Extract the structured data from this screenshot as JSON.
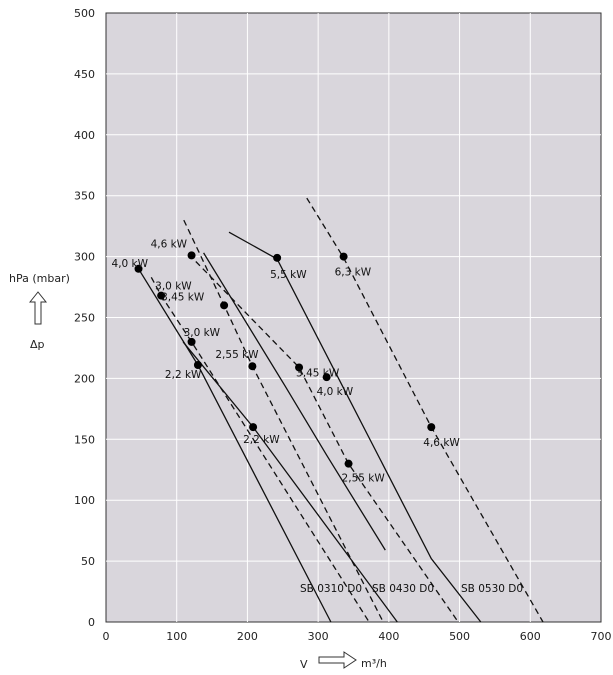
{
  "chart_data": {
    "type": "line",
    "xlim": [
      0,
      700
    ],
    "ylim": [
      0,
      500
    ],
    "x_ticks": [
      "0",
      "100",
      "200",
      "300",
      "400",
      "500",
      "600",
      "700"
    ],
    "y_ticks": [
      "0",
      "50",
      "100",
      "150",
      "200",
      "250",
      "300",
      "350",
      "400",
      "450",
      "500"
    ],
    "grid": true,
    "background_color": "#d9d6dc",
    "ylabel": "hPa (mbar)",
    "ylabel_symbol": "Δp",
    "xlabel_symbol": "V",
    "xlabel_unit": "m³/h",
    "series": [
      {
        "name": "SB 0310 D0",
        "dash": false,
        "points": [
          [
            46,
            290
          ],
          [
            130,
            211
          ],
          [
            318,
            0
          ]
        ]
      },
      {
        "name": "",
        "dash": true,
        "points": [
          [
            64,
            283
          ],
          [
            78,
            268
          ],
          [
            121,
            230
          ],
          [
            372,
            0
          ]
        ]
      },
      {
        "name": "",
        "dash": false,
        "points": [
          [
            109,
            230
          ],
          [
            208,
            160
          ],
          [
            412,
            0
          ]
        ]
      },
      {
        "name": "SB 0430 D0",
        "dash": true,
        "points": [
          [
            110,
            330
          ],
          [
            167,
            260
          ],
          [
            207,
            210
          ],
          [
            392,
            0
          ]
        ]
      },
      {
        "name": "",
        "dash": false,
        "points": [
          [
            138,
            303
          ],
          [
            253,
            194
          ],
          [
            312,
            137
          ],
          [
            395,
            59
          ]
        ]
      },
      {
        "name": "",
        "dash": true,
        "points": [
          [
            127,
            296
          ],
          [
            273,
            209
          ],
          [
            343,
            130
          ],
          [
            498,
            0
          ]
        ]
      },
      {
        "name": "SB 0530 D0",
        "dash": false,
        "points": [
          [
            174,
            320
          ],
          [
            242,
            298
          ],
          [
            460,
            52
          ],
          [
            530,
            0
          ]
        ]
      },
      {
        "name": "",
        "dash": true,
        "points": [
          [
            284,
            348
          ],
          [
            336,
            299
          ],
          [
            460,
            160
          ],
          [
            618,
            0
          ]
        ]
      }
    ],
    "points": [
      {
        "x": 46,
        "y": 290,
        "label": "4,0 kW"
      },
      {
        "x": 121,
        "y": 301,
        "label": "4,6 kW"
      },
      {
        "x": 78,
        "y": 268,
        "label": "3,0 kW"
      },
      {
        "x": 167,
        "y": 260,
        "label": "3,45 kW"
      },
      {
        "x": 121,
        "y": 230,
        "label": "3,0 kW"
      },
      {
        "x": 130,
        "y": 211,
        "label": "2,2 kW"
      },
      {
        "x": 207,
        "y": 210,
        "label": "2,55 kW"
      },
      {
        "x": 242,
        "y": 299,
        "label": "5,5 kW"
      },
      {
        "x": 336,
        "y": 300,
        "label": "6,3 kW"
      },
      {
        "x": 273,
        "y": 209,
        "label": "3,45 kW"
      },
      {
        "x": 312,
        "y": 201,
        "label": "4,0 kW"
      },
      {
        "x": 208,
        "y": 160,
        "label": "2,2 kW"
      },
      {
        "x": 343,
        "y": 130,
        "label": "2,55 kW"
      },
      {
        "x": 460,
        "y": 160,
        "label": "4,6 kW"
      }
    ]
  }
}
